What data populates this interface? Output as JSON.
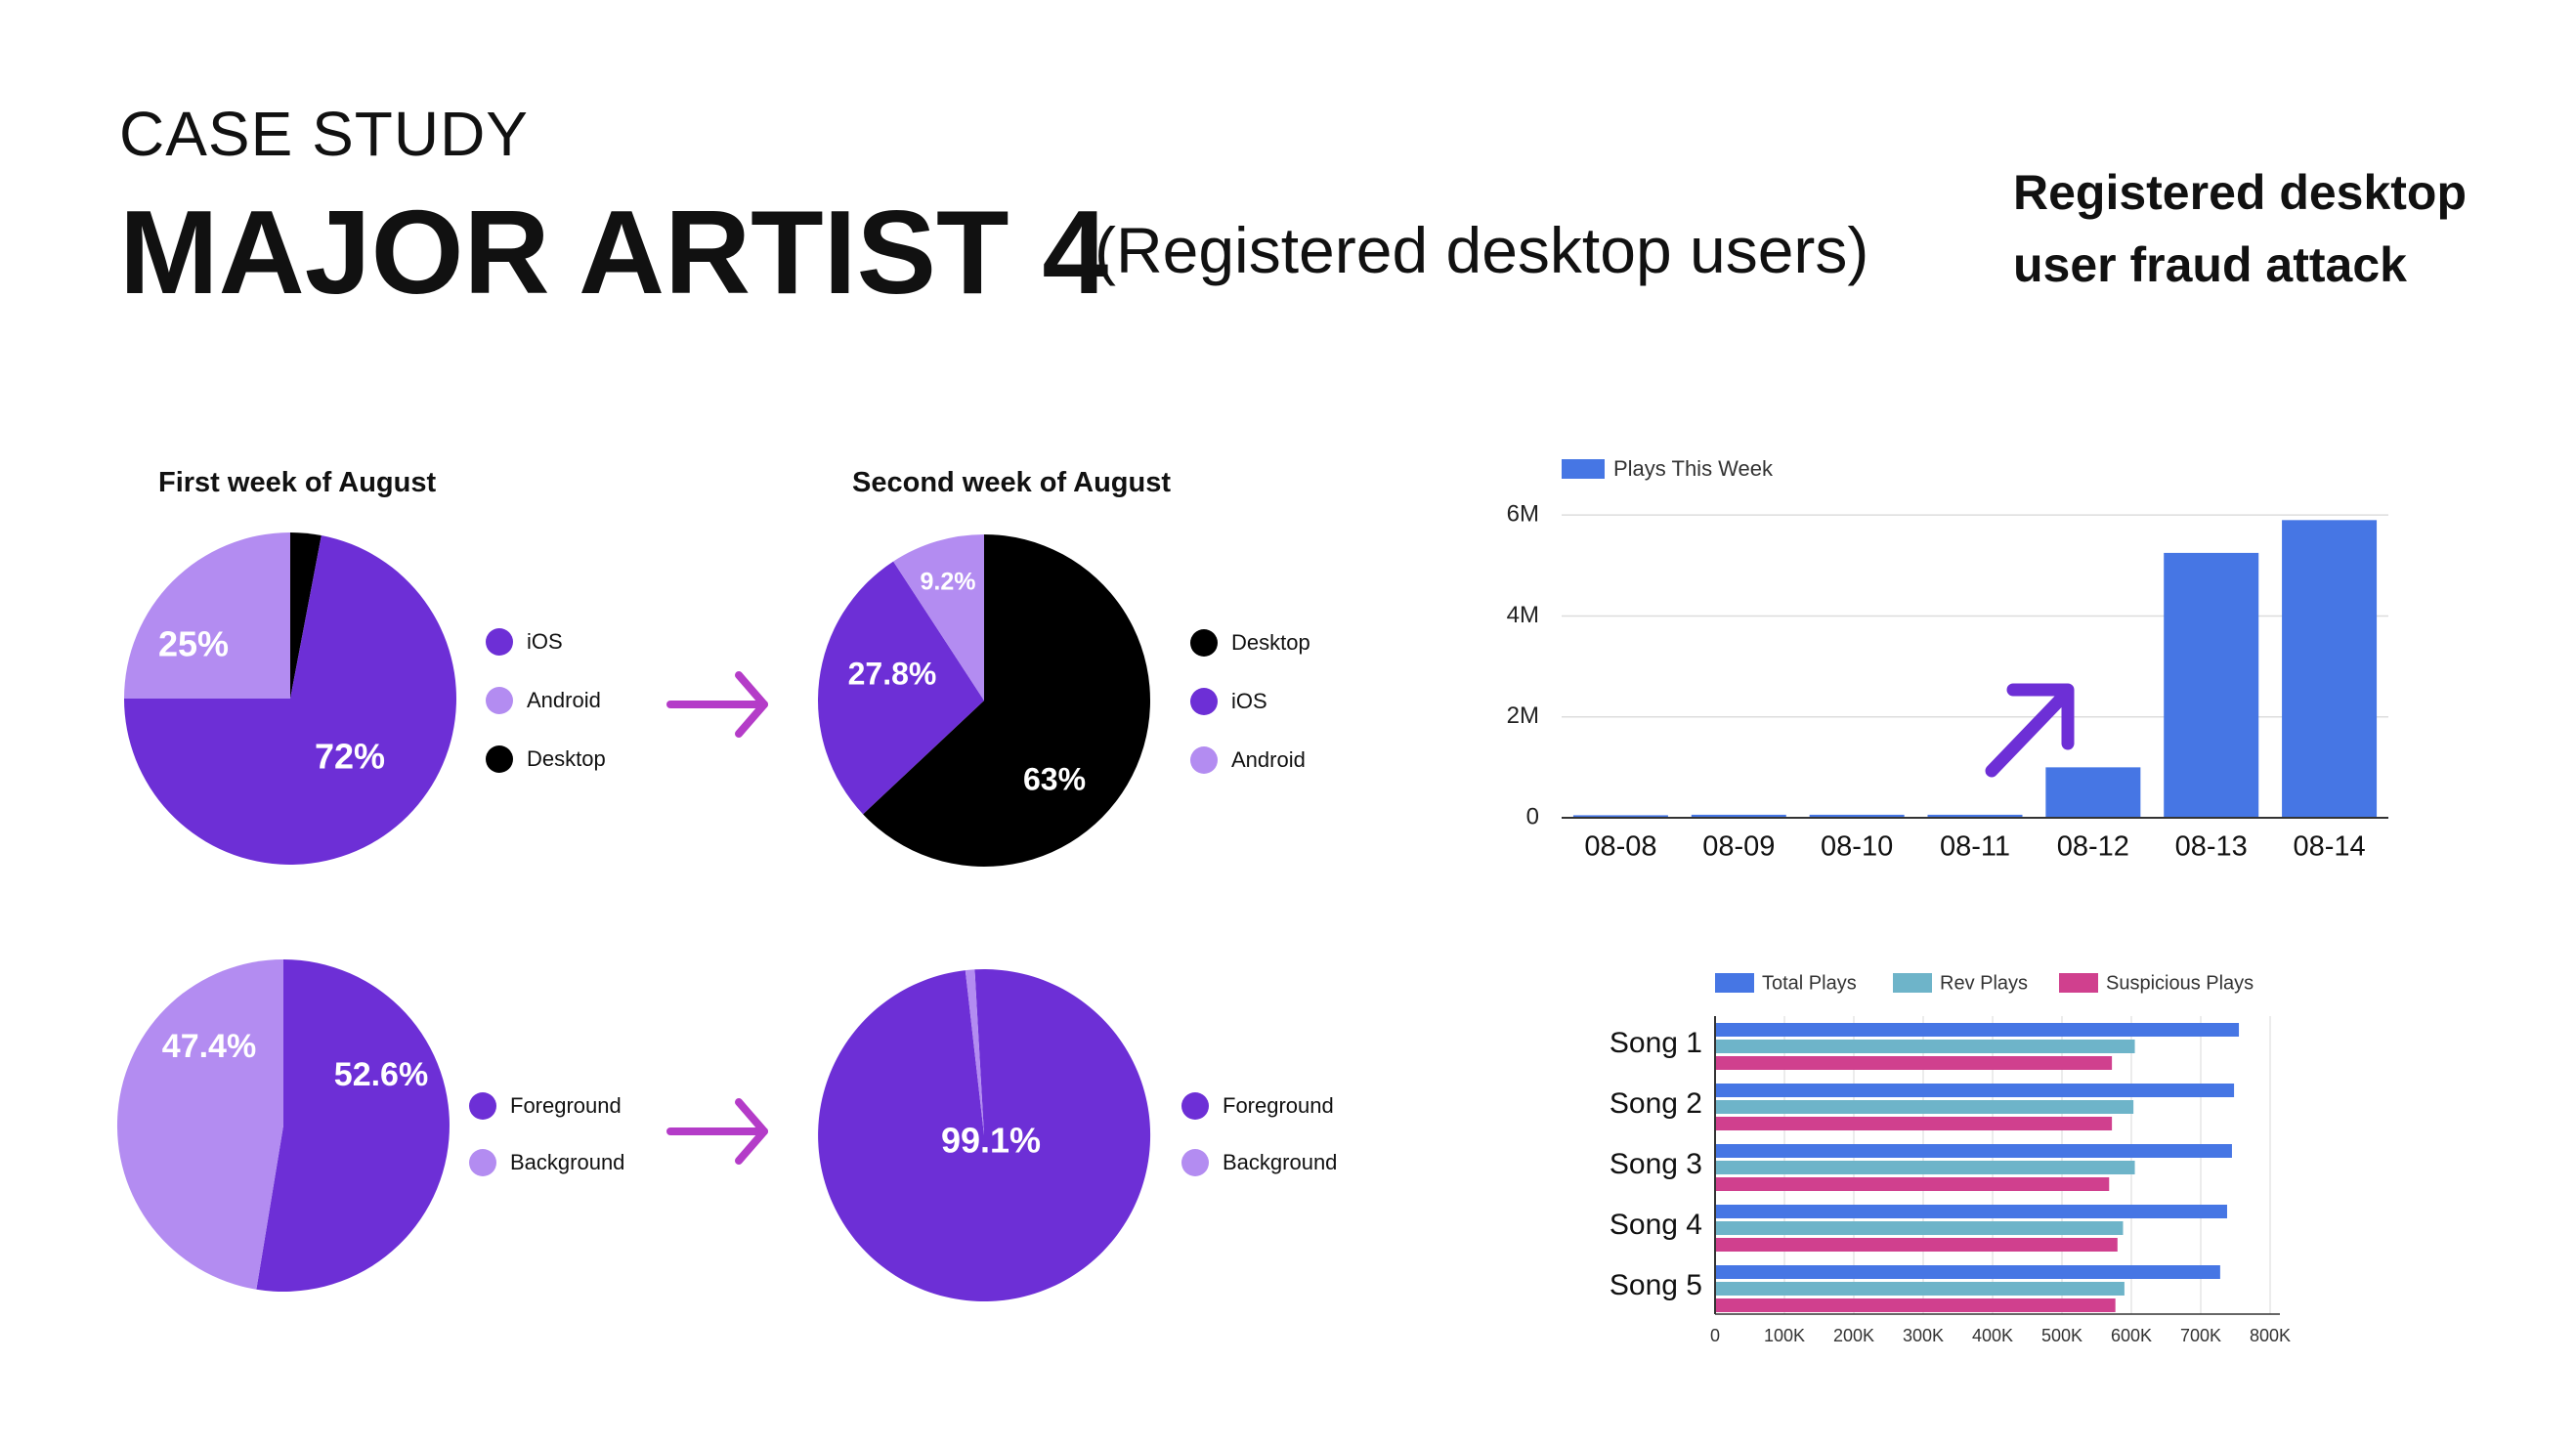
{
  "header": {
    "eyebrow": "CASE STUDY",
    "title": "MAJOR ARTIST 4",
    "subtitle": "(Registered desktop users)",
    "side_note_line1": "Registered desktop",
    "side_note_line2": "user fraud attack"
  },
  "colors": {
    "purple": "#6d2fd6",
    "light_purple": "#b38cf1",
    "black": "#000000",
    "arrow": "#b43cc8",
    "blue": "#4676e4",
    "teal": "#6eb4c9",
    "pink": "#d0408e"
  },
  "chart_data": [
    {
      "type": "pie",
      "title": "First week of August",
      "slices": [
        {
          "label": "iOS",
          "value": 72,
          "display": "72%",
          "color": "#6d2fd6"
        },
        {
          "label": "Android",
          "value": 25,
          "display": "25%",
          "color": "#b38cf1"
        },
        {
          "label": "Desktop",
          "value": 3,
          "display": "",
          "color": "#000000"
        }
      ],
      "legend": [
        "iOS",
        "Android",
        "Desktop"
      ],
      "legend_colors": [
        "#6d2fd6",
        "#b38cf1",
        "#000000"
      ]
    },
    {
      "type": "pie",
      "title": "Second week of August",
      "slices": [
        {
          "label": "Desktop",
          "value": 63,
          "display": "63%",
          "color": "#000000"
        },
        {
          "label": "iOS",
          "value": 27.8,
          "display": "27.8%",
          "color": "#6d2fd6"
        },
        {
          "label": "Android",
          "value": 9.2,
          "display": "9.2%",
          "color": "#b38cf1"
        }
      ],
      "legend": [
        "Desktop",
        "iOS",
        "Android"
      ],
      "legend_colors": [
        "#000000",
        "#6d2fd6",
        "#b38cf1"
      ]
    },
    {
      "type": "pie",
      "title": "",
      "slices": [
        {
          "label": "Foreground",
          "value": 52.6,
          "display": "52.6%",
          "color": "#6d2fd6"
        },
        {
          "label": "Background",
          "value": 47.4,
          "display": "47.4%",
          "color": "#b38cf1"
        }
      ],
      "legend": [
        "Foreground",
        "Background"
      ],
      "legend_colors": [
        "#6d2fd6",
        "#b38cf1"
      ]
    },
    {
      "type": "pie",
      "title": "",
      "slices": [
        {
          "label": "Foreground",
          "value": 99.1,
          "display": "99.1%",
          "color": "#6d2fd6"
        },
        {
          "label": "Background",
          "value": 0.9,
          "display": "",
          "color": "#b38cf1"
        }
      ],
      "legend": [
        "Foreground",
        "Background"
      ],
      "legend_colors": [
        "#6d2fd6",
        "#b38cf1"
      ]
    },
    {
      "type": "bar",
      "title": "",
      "legend": "top-left",
      "categories": [
        "08-08",
        "08-09",
        "08-10",
        "08-11",
        "08-12",
        "08-13",
        "08-14"
      ],
      "series": [
        {
          "name": "Plays This Week",
          "values": [
            0.05,
            0.06,
            0.06,
            0.06,
            1.0,
            5.25,
            5.9
          ],
          "color": "#4676e4"
        }
      ],
      "yticks": [
        "0",
        "2M",
        "4M",
        "6M"
      ],
      "ytick_values": [
        0,
        2,
        4,
        6
      ],
      "ylim": [
        0,
        6.1
      ],
      "unit": "M",
      "grid": true
    },
    {
      "type": "bar",
      "orientation": "horizontal",
      "title": "",
      "legend": "top",
      "categories": [
        "Song 1",
        "Song 2",
        "Song 3",
        "Song 4",
        "Song 5"
      ],
      "series": [
        {
          "name": "Total Plays",
          "values": [
            755000,
            748000,
            745000,
            738000,
            728000
          ],
          "color": "#4676e4"
        },
        {
          "name": "Rev Plays",
          "values": [
            605000,
            603000,
            605000,
            588000,
            590000
          ],
          "color": "#6eb4c9"
        },
        {
          "name": "Suspicious Plays",
          "values": [
            572000,
            572000,
            568000,
            580000,
            577000
          ],
          "color": "#d0408e"
        }
      ],
      "xticks": [
        "0",
        "100K",
        "200K",
        "300K",
        "400K",
        "500K",
        "600K",
        "700K",
        "800K"
      ],
      "xtick_values": [
        0,
        100000,
        200000,
        300000,
        400000,
        500000,
        600000,
        700000,
        800000
      ],
      "xlim": [
        0,
        800000
      ],
      "grid": true
    }
  ]
}
